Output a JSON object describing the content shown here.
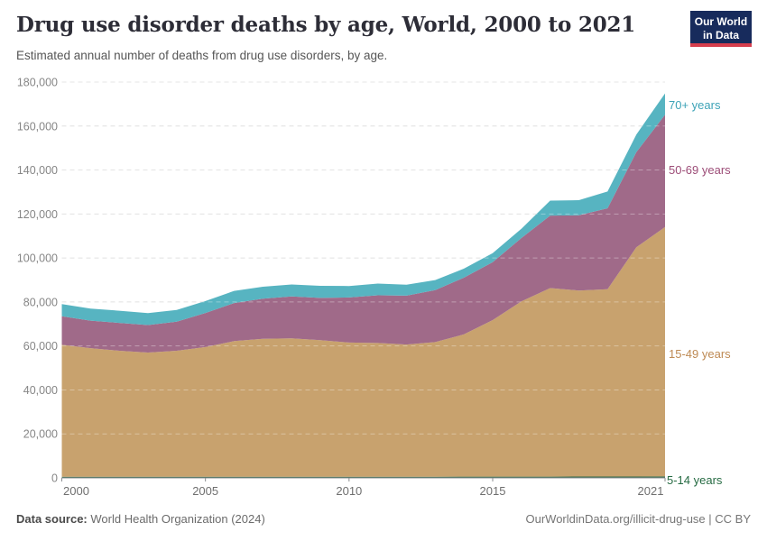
{
  "header": {
    "title": "Drug use disorder deaths by age, World, 2000 to 2021",
    "subtitle": "Estimated annual number of deaths from drug use disorders, by age.",
    "logo_line1": "Our World",
    "logo_line2": "in Data",
    "logo_bg": "#172B5C",
    "logo_red": "#D63E4D"
  },
  "footer": {
    "datasource_label": "Data source:",
    "datasource_value": "World Health Organization (2024)",
    "attribution": "OurWorldinData.org/illicit-drug-use | CC BY"
  },
  "chart_data": {
    "type": "area",
    "stacked": true,
    "title": "Drug use disorder deaths by age, World, 2000 to 2021",
    "xlabel": "",
    "ylabel": "",
    "grid": "dashed-horizontal",
    "legend_position": "right-edge-labels",
    "xlim": [
      2000,
      2021
    ],
    "ylim": [
      0,
      180000
    ],
    "x": [
      2000,
      2001,
      2002,
      2003,
      2004,
      2005,
      2006,
      2007,
      2008,
      2009,
      2010,
      2011,
      2012,
      2013,
      2014,
      2015,
      2016,
      2017,
      2018,
      2019,
      2020,
      2021
    ],
    "series": [
      {
        "id": "5-14",
        "name": "5-14 years",
        "color": "#2F6B4A",
        "label_color": "#266B43",
        "values": [
          500,
          500,
          500,
          500,
          500,
          510,
          520,
          520,
          530,
          530,
          540,
          540,
          550,
          550,
          560,
          570,
          580,
          590,
          600,
          610,
          630,
          650
        ]
      },
      {
        "id": "15-49",
        "name": "15-49 years",
        "color": "#C8A26E",
        "label_color": "#BE8A54",
        "values": [
          60000,
          58500,
          57300,
          56500,
          57300,
          59000,
          61700,
          62700,
          62900,
          62100,
          61000,
          60800,
          60100,
          61200,
          64700,
          71200,
          79700,
          85700,
          84600,
          85200,
          104200,
          113400
        ]
      },
      {
        "id": "50-69",
        "name": "50-69 years",
        "color": "#A06A89",
        "label_color": "#9C4C77",
        "values": [
          13000,
          12500,
          12700,
          12500,
          13200,
          15500,
          17300,
          18300,
          19100,
          19200,
          20500,
          21700,
          22200,
          23600,
          25800,
          26300,
          28800,
          33000,
          34200,
          36800,
          43300,
          51100
        ]
      },
      {
        "id": "70plus",
        "name": "70+ years",
        "color": "#57B4C1",
        "label_color": "#3DA3B7",
        "values": [
          5500,
          5500,
          5500,
          5400,
          5400,
          5400,
          5500,
          5400,
          5400,
          5500,
          5200,
          5300,
          5000,
          4600,
          4100,
          4100,
          4200,
          6800,
          6900,
          7600,
          8000,
          9700
        ]
      }
    ],
    "yticks": [
      {
        "value": 0,
        "label": "0"
      },
      {
        "value": 20000,
        "label": "20,000"
      },
      {
        "value": 40000,
        "label": "40,000"
      },
      {
        "value": 60000,
        "label": "60,000"
      },
      {
        "value": 80000,
        "label": "80,000"
      },
      {
        "value": 100000,
        "label": "100,000"
      },
      {
        "value": 120000,
        "label": "120,000"
      },
      {
        "value": 140000,
        "label": "140,000"
      },
      {
        "value": 160000,
        "label": "160,000"
      },
      {
        "value": 180000,
        "label": "180,000"
      }
    ],
    "xticks": [
      {
        "year": 2000,
        "label": "2000"
      },
      {
        "year": 2005,
        "label": "2005"
      },
      {
        "year": 2010,
        "label": "2010"
      },
      {
        "year": 2015,
        "label": "2015"
      },
      {
        "year": 2021,
        "label": "2021"
      }
    ]
  }
}
